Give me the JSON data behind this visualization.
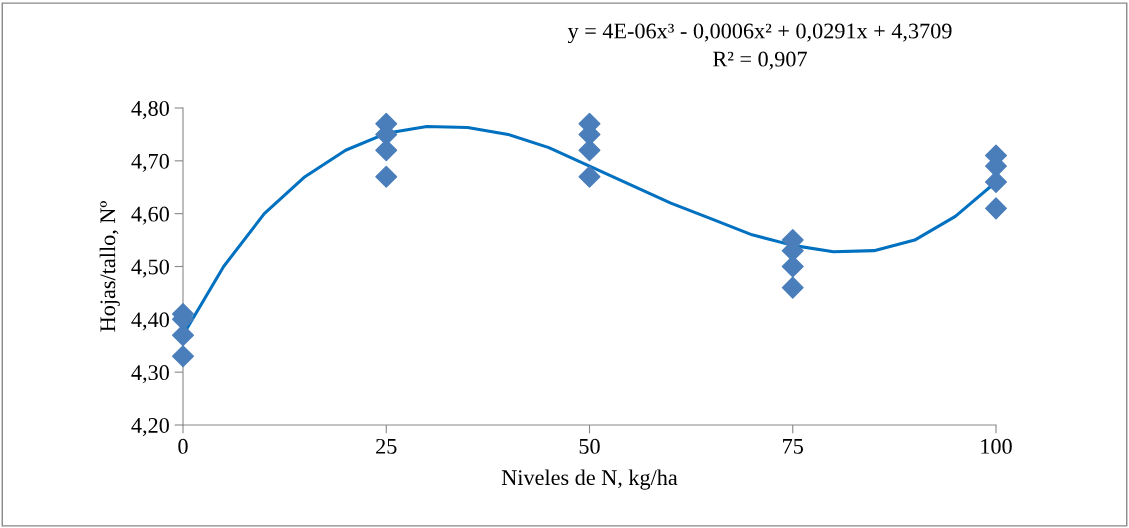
{
  "chart_data": {
    "type": "scatter",
    "xlabel": "Niveles de N, kg/ha",
    "ylabel": "Hojas/tallo, Nº",
    "annotations": [
      "y = 4E-06x³ - 0,0006x² + 0,0291x + 4,3709",
      "R² = 0,907"
    ],
    "xlim": [
      0,
      100
    ],
    "xticks": [
      0,
      25,
      50,
      75,
      100
    ],
    "ylim": [
      4.2,
      4.8
    ],
    "yticks": [
      {
        "value": 4.2,
        "label": "4,20"
      },
      {
        "value": 4.3,
        "label": "4,30"
      },
      {
        "value": 4.4,
        "label": "4,40"
      },
      {
        "value": 4.5,
        "label": "4,50"
      },
      {
        "value": 4.6,
        "label": "4,60"
      },
      {
        "value": 4.7,
        "label": "4,70"
      },
      {
        "value": 4.8,
        "label": "4,80"
      }
    ],
    "grid": false,
    "legend": false,
    "series": [
      {
        "marker": "diamond",
        "color": "#4a7ebb",
        "x": [
          0,
          0,
          0,
          0,
          25,
          25,
          25,
          25,
          50,
          50,
          50,
          50,
          75,
          75,
          75,
          75,
          100,
          100,
          100,
          100
        ],
        "values": [
          4.41,
          4.4,
          4.37,
          4.33,
          4.77,
          4.75,
          4.72,
          4.67,
          4.77,
          4.75,
          4.72,
          4.67,
          4.55,
          4.53,
          4.5,
          4.46,
          4.71,
          4.69,
          4.66,
          4.61
        ]
      },
      {
        "type": "line",
        "marker": "none",
        "line_style": "solid",
        "color": "#0070c0",
        "x": [
          0,
          5,
          10,
          15,
          20,
          25,
          30,
          35,
          40,
          45,
          50,
          55,
          60,
          65,
          70,
          75,
          80,
          85,
          90,
          95,
          100
        ],
        "values": [
          4.37,
          4.5,
          4.6,
          4.67,
          4.72,
          4.752,
          4.765,
          4.763,
          4.75,
          4.725,
          4.69,
          4.655,
          4.62,
          4.59,
          4.56,
          4.54,
          4.528,
          4.53,
          4.55,
          4.595,
          4.66
        ]
      }
    ]
  }
}
